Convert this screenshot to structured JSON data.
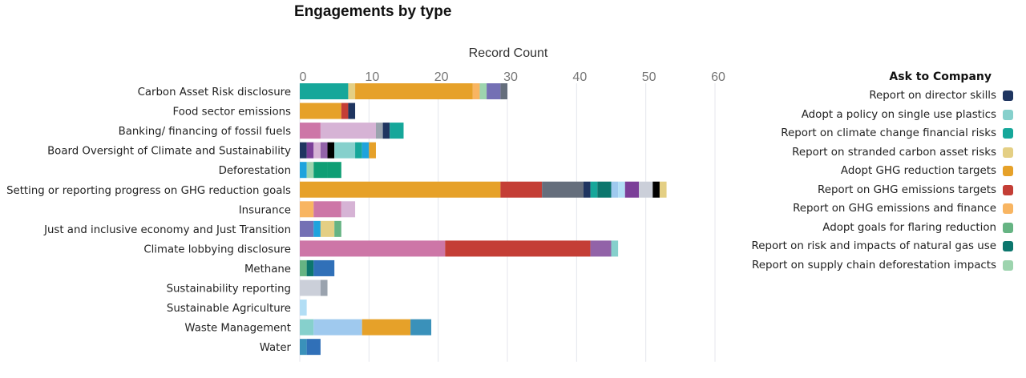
{
  "chart_data": {
    "type": "bar",
    "orientation": "horizontal",
    "stacked": true,
    "title": "Engagements by type",
    "xlabel": "Record Count",
    "ylabel": "",
    "xlim": [
      0,
      60
    ],
    "xticks": [
      0,
      10,
      20,
      30,
      40,
      50,
      60
    ],
    "grid": true,
    "legend_title": "Ask to Company",
    "legend_position": "right",
    "legend": [
      {
        "label": "Report on director skills",
        "color": "#1f3560"
      },
      {
        "label": "Adopt a policy on single use plastics",
        "color": "#86d0cc"
      },
      {
        "label": "Report on climate change financial risks",
        "color": "#16a79a"
      },
      {
        "label": "Report on stranded carbon asset risks",
        "color": "#e4cf84"
      },
      {
        "label": "Adopt GHG reduction targets",
        "color": "#e6a129"
      },
      {
        "label": "Report on GHG emissions targets",
        "color": "#c43e36"
      },
      {
        "label": "Report on GHG emissions and finance",
        "color": "#f8b562"
      },
      {
        "label": "Adopt goals for flaring reduction",
        "color": "#66b483"
      },
      {
        "label": "Report on risk and impacts of natural gas use",
        "color": "#0c766d"
      },
      {
        "label": "Report on supply chain deforestation impacts",
        "color": "#9dd4ae"
      }
    ],
    "categories": [
      "Carbon Asset Risk disclosure",
      "Food sector emissions",
      "Banking/ financing of fossil fuels",
      "Board Oversight of Climate and Sustainability",
      "Deforestation",
      "Setting or reporting progress on GHG reduction goals",
      "Insurance",
      "Just and inclusive economy and Just Transition",
      "Climate lobbying disclosure",
      "Methane",
      "Sustainability reporting",
      "Sustainable Agriculture",
      "Waste Management",
      "Water"
    ],
    "rows": [
      {
        "category": "Carbon Asset Risk disclosure",
        "total": 30,
        "segments": [
          {
            "value": 7,
            "color": "#16a79a"
          },
          {
            "value": 1,
            "color": "#e4cf84"
          },
          {
            "value": 17,
            "color": "#e6a129"
          },
          {
            "value": 1,
            "color": "#f8b562"
          },
          {
            "value": 1,
            "color": "#9dd4ae"
          },
          {
            "value": 2,
            "color": "#7470b4"
          },
          {
            "value": 1,
            "color": "#656e7c"
          }
        ]
      },
      {
        "category": "Food sector emissions",
        "total": 8,
        "segments": [
          {
            "value": 6,
            "color": "#e6a129"
          },
          {
            "value": 1,
            "color": "#c43e36"
          },
          {
            "value": 1,
            "color": "#1f3560"
          }
        ]
      },
      {
        "category": "Banking/ financing of fossil fuels",
        "total": 15,
        "segments": [
          {
            "value": 3,
            "color": "#cd76a7"
          },
          {
            "value": 8,
            "color": "#d6b3d5"
          },
          {
            "value": 1,
            "color": "#9aa3ae"
          },
          {
            "value": 1,
            "color": "#1f3560"
          },
          {
            "value": 2,
            "color": "#16a79a"
          }
        ]
      },
      {
        "category": "Board Oversight of Climate and Sustainability",
        "total": 11,
        "segments": [
          {
            "value": 1,
            "color": "#1f3560"
          },
          {
            "value": 1,
            "color": "#7b3f98"
          },
          {
            "value": 1,
            "color": "#d6b3d5"
          },
          {
            "value": 1,
            "color": "#9263a8"
          },
          {
            "value": 1,
            "color": "#000000"
          },
          {
            "value": 3,
            "color": "#86d0cc"
          },
          {
            "value": 1,
            "color": "#16a79a"
          },
          {
            "value": 1,
            "color": "#1ea3dd"
          },
          {
            "value": 1,
            "color": "#e6a129"
          }
        ]
      },
      {
        "category": "Deforestation",
        "total": 6,
        "segments": [
          {
            "value": 1,
            "color": "#1ea3dd"
          },
          {
            "value": 1,
            "color": "#9dd4ae"
          },
          {
            "value": 2,
            "color": "#0e9e74"
          },
          {
            "value": 2,
            "color": "#0e9e74"
          }
        ]
      },
      {
        "category": "Setting or reporting progress on GHG reduction goals",
        "total": 53,
        "segments": [
          {
            "value": 29,
            "color": "#e6a129"
          },
          {
            "value": 6,
            "color": "#c43e36"
          },
          {
            "value": 6,
            "color": "#656e7c"
          },
          {
            "value": 1,
            "color": "#1f3560"
          },
          {
            "value": 1,
            "color": "#16a79a"
          },
          {
            "value": 2,
            "color": "#0c766d"
          },
          {
            "value": 1,
            "color": "#9fc9ee"
          },
          {
            "value": 1,
            "color": "#b2def5"
          },
          {
            "value": 2,
            "color": "#7b3f98"
          },
          {
            "value": 2,
            "color": "#cbcfd9"
          },
          {
            "value": 1,
            "color": "#000000"
          },
          {
            "value": 1,
            "color": "#e4cf84"
          }
        ]
      },
      {
        "category": "Insurance",
        "total": 8,
        "segments": [
          {
            "value": 2,
            "color": "#f8b562"
          },
          {
            "value": 4,
            "color": "#cd76a7"
          },
          {
            "value": 2,
            "color": "#d6b3d5"
          }
        ]
      },
      {
        "category": "Just and inclusive economy and Just Transition",
        "total": 6,
        "segments": [
          {
            "value": 2,
            "color": "#7470b4"
          },
          {
            "value": 1,
            "color": "#1ea3dd"
          },
          {
            "value": 2,
            "color": "#e4cf84"
          },
          {
            "value": 1,
            "color": "#66b483"
          }
        ]
      },
      {
        "category": "Climate lobbying disclosure",
        "total": 46,
        "segments": [
          {
            "value": 21,
            "color": "#cd76a7"
          },
          {
            "value": 21,
            "color": "#c43e36"
          },
          {
            "value": 3,
            "color": "#9263a8"
          },
          {
            "value": 1,
            "color": "#86d0cc"
          }
        ]
      },
      {
        "category": "Methane",
        "total": 5,
        "segments": [
          {
            "value": 1,
            "color": "#66b483"
          },
          {
            "value": 1,
            "color": "#0c766d"
          },
          {
            "value": 3,
            "color": "#3070b8"
          }
        ]
      },
      {
        "category": "Sustainability reporting",
        "total": 4,
        "segments": [
          {
            "value": 3,
            "color": "#cbcfd9"
          },
          {
            "value": 1,
            "color": "#9aa3ae"
          }
        ]
      },
      {
        "category": "Sustainable Agriculture",
        "total": 1,
        "segments": [
          {
            "value": 1,
            "color": "#b2def5"
          }
        ]
      },
      {
        "category": "Waste Management",
        "total": 19,
        "segments": [
          {
            "value": 2,
            "color": "#86d0cc"
          },
          {
            "value": 7,
            "color": "#9fc9ee"
          },
          {
            "value": 7,
            "color": "#e6a129"
          },
          {
            "value": 3,
            "color": "#3a91ba"
          }
        ]
      },
      {
        "category": "Water",
        "total": 3,
        "segments": [
          {
            "value": 1,
            "color": "#3a91ba"
          },
          {
            "value": 2,
            "color": "#3070b8"
          }
        ]
      }
    ]
  }
}
